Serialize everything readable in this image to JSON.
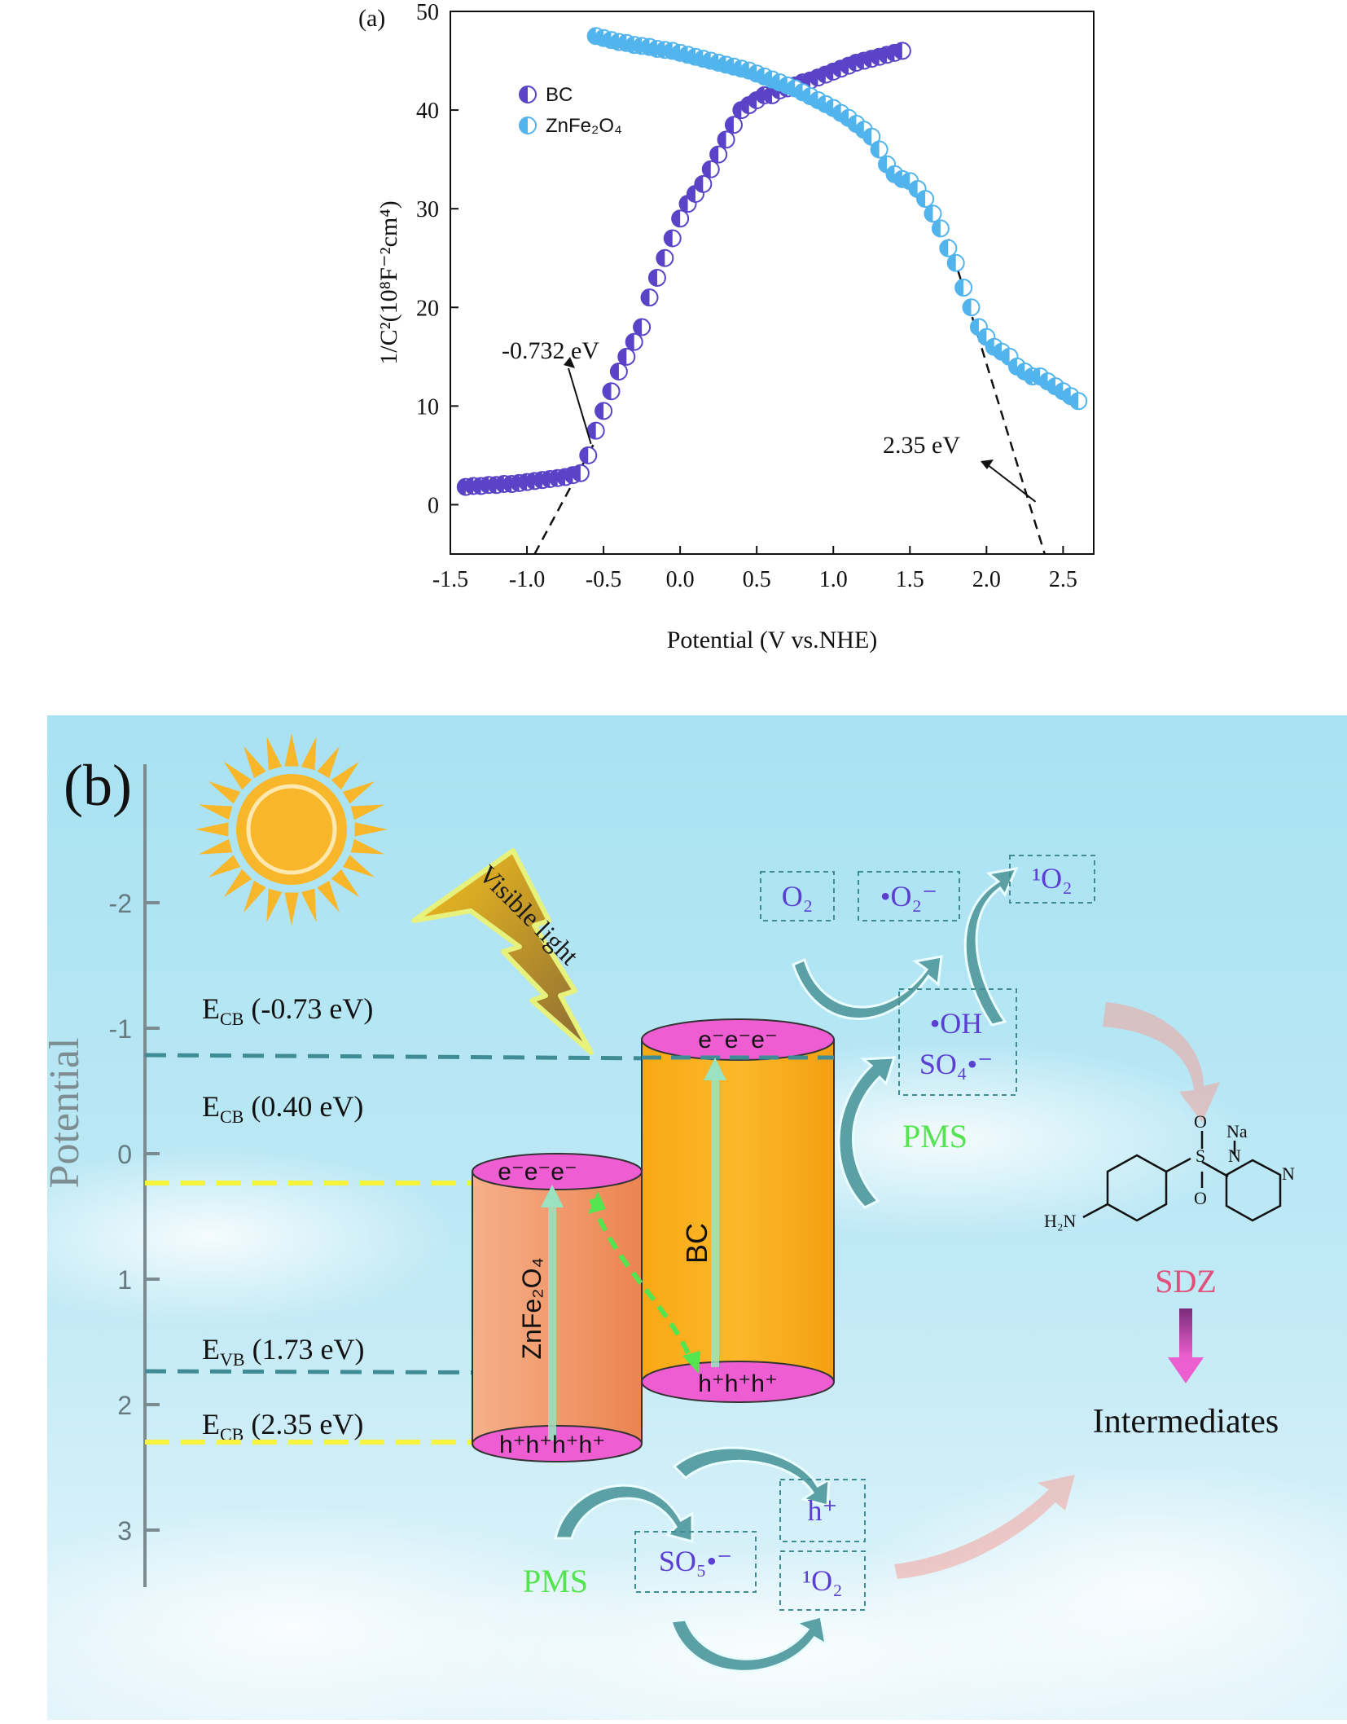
{
  "panel_a": {
    "label": "(a)",
    "chart_data": {
      "type": "scatter",
      "xlabel": "Potential (V vs.NHE)",
      "ylabel": "1/C²(10⁸F⁻²cm⁴)",
      "xlim": [
        -1.5,
        2.7
      ],
      "ylim": [
        -5,
        50
      ],
      "xticks": [
        "-1.5",
        "-1.0",
        "-0.5",
        "0.0",
        "0.5",
        "1.0",
        "1.5",
        "2.0",
        "2.5"
      ],
      "yticks": [
        "0",
        "10",
        "20",
        "30",
        "40",
        "50"
      ],
      "legend_position": "top-left",
      "series": [
        {
          "name": "BC",
          "color": "#5a43c6",
          "x": [
            -1.4,
            -1.35,
            -1.3,
            -1.25,
            -1.2,
            -1.15,
            -1.1,
            -1.05,
            -1.0,
            -0.95,
            -0.9,
            -0.85,
            -0.8,
            -0.75,
            -0.7,
            -0.65,
            -0.6,
            -0.55,
            -0.5,
            -0.45,
            -0.4,
            -0.35,
            -0.3,
            -0.25,
            -0.2,
            -0.15,
            -0.1,
            -0.05,
            0.0,
            0.05,
            0.1,
            0.15,
            0.2,
            0.25,
            0.3,
            0.35,
            0.4,
            0.45,
            0.5,
            0.55,
            0.6,
            0.65,
            0.7,
            0.75,
            0.8,
            0.85,
            0.9,
            0.95,
            1.0,
            1.05,
            1.1,
            1.15,
            1.2,
            1.25,
            1.3,
            1.35,
            1.4,
            1.45
          ],
          "y": [
            1.8,
            1.9,
            1.9,
            2.0,
            2.0,
            2.1,
            2.1,
            2.2,
            2.3,
            2.4,
            2.5,
            2.6,
            2.7,
            2.8,
            3.0,
            3.2,
            5.0,
            7.5,
            9.5,
            11.5,
            13.5,
            15.0,
            16.5,
            18.0,
            21.0,
            23.0,
            25.0,
            27.0,
            29.0,
            30.5,
            31.5,
            32.5,
            34.0,
            35.5,
            37.0,
            38.5,
            40.0,
            40.5,
            41.0,
            41.5,
            41.5,
            42.0,
            42.2,
            42.5,
            42.8,
            43.0,
            43.3,
            43.6,
            43.9,
            44.2,
            44.5,
            44.8,
            45.0,
            45.2,
            45.4,
            45.6,
            45.8,
            46.0
          ]
        },
        {
          "name": "ZnFe₂O₄",
          "color": "#52b4ec",
          "x": [
            -0.55,
            -0.5,
            -0.45,
            -0.4,
            -0.35,
            -0.3,
            -0.25,
            -0.2,
            -0.15,
            -0.1,
            -0.05,
            0.0,
            0.05,
            0.1,
            0.15,
            0.2,
            0.25,
            0.3,
            0.35,
            0.4,
            0.45,
            0.5,
            0.55,
            0.6,
            0.65,
            0.7,
            0.75,
            0.8,
            0.85,
            0.9,
            0.95,
            1.0,
            1.05,
            1.1,
            1.15,
            1.2,
            1.25,
            1.3,
            1.35,
            1.4,
            1.45,
            1.5,
            1.55,
            1.6,
            1.65,
            1.7,
            1.75,
            1.8,
            1.85,
            1.9,
            1.95,
            2.0,
            2.05,
            2.1,
            2.15,
            2.2,
            2.25,
            2.3,
            2.35,
            2.4,
            2.45,
            2.5,
            2.55,
            2.6
          ],
          "y": [
            47.5,
            47.3,
            47.1,
            46.9,
            46.8,
            46.6,
            46.5,
            46.4,
            46.2,
            46.1,
            46.0,
            45.8,
            45.6,
            45.4,
            45.2,
            45.0,
            44.8,
            44.6,
            44.4,
            44.2,
            44.0,
            43.7,
            43.4,
            43.1,
            42.8,
            42.5,
            42.2,
            41.8,
            41.4,
            41.0,
            40.6,
            40.2,
            39.7,
            39.2,
            38.6,
            38.0,
            37.3,
            36.0,
            34.5,
            33.5,
            33.0,
            32.8,
            32.0,
            31.0,
            29.5,
            28.0,
            26.0,
            24.5,
            22.0,
            20.0,
            18.0,
            17.0,
            16.0,
            15.5,
            15.0,
            14.0,
            13.5,
            13.0,
            13.0,
            12.5,
            12.0,
            11.5,
            11.0,
            10.5
          ]
        }
      ],
      "fit_lines": [
        {
          "x": [
            -0.95,
            -0.5
          ],
          "y": [
            -5,
            8
          ]
        },
        {
          "x": [
            1.72,
            2.38
          ],
          "y": [
            28.5,
            -5
          ]
        }
      ],
      "annotations": [
        {
          "text": "-0.732 eV",
          "points_to": [
            -0.55,
            5.5
          ]
        },
        {
          "text": "2.35 eV",
          "points_to": [
            2.32,
            0.3
          ]
        }
      ]
    }
  },
  "panel_b": {
    "label": "(b)",
    "axis_title": "Potential",
    "axis_ticks": [
      "-2",
      "-1",
      "0",
      "1",
      "2",
      "3"
    ],
    "light_label": "Visible light",
    "levels": {
      "bc_cb_prefix": "E",
      "bc_cb_sub": "CB",
      "bc_cb_value": " (-0.73 eV)",
      "zn_cb_prefix": "E",
      "zn_cb_sub": "CB",
      "zn_cb_value": " (0.40 eV)",
      "zn_vb_prefix": "E",
      "zn_vb_sub": "VB",
      "zn_vb_value": " (1.73 eV)",
      "bc_vb_prefix": "E",
      "bc_vb_sub": "CB",
      "bc_vb_value": " (2.35 eV)"
    },
    "bc_label": "BC",
    "zn_label": "ZnFe₂O₄",
    "bc_top": "e⁻e⁻e⁻",
    "bc_bottom": "h⁺h⁺h⁺",
    "zn_top": "e⁻e⁻e⁻",
    "zn_bottom": "h⁺h⁺h⁺h⁺",
    "species": {
      "o2": "O₂",
      "superoxide": "•O₂⁻",
      "singlet_top": "¹O₂",
      "oh": "•OH",
      "so4": "SO₄•⁻",
      "pms_right": "PMS",
      "pms_bottom": "PMS",
      "so5": "SO₅•⁻",
      "hole": "h⁺",
      "singlet_bottom": "¹O₂"
    },
    "molecule": {
      "h2n": "H₂N",
      "na": "Na",
      "n": "N",
      "s": "S",
      "o": "O"
    },
    "sdz": "SDZ",
    "intermediates": "Intermediates",
    "colors": {
      "bc": "#f8b11e",
      "znfe2o4": "#f29a6a",
      "cap": "#ef5fd3",
      "green": "#54e44f",
      "purple": "#5b3fd2",
      "bg": "#b6e8f4"
    }
  }
}
